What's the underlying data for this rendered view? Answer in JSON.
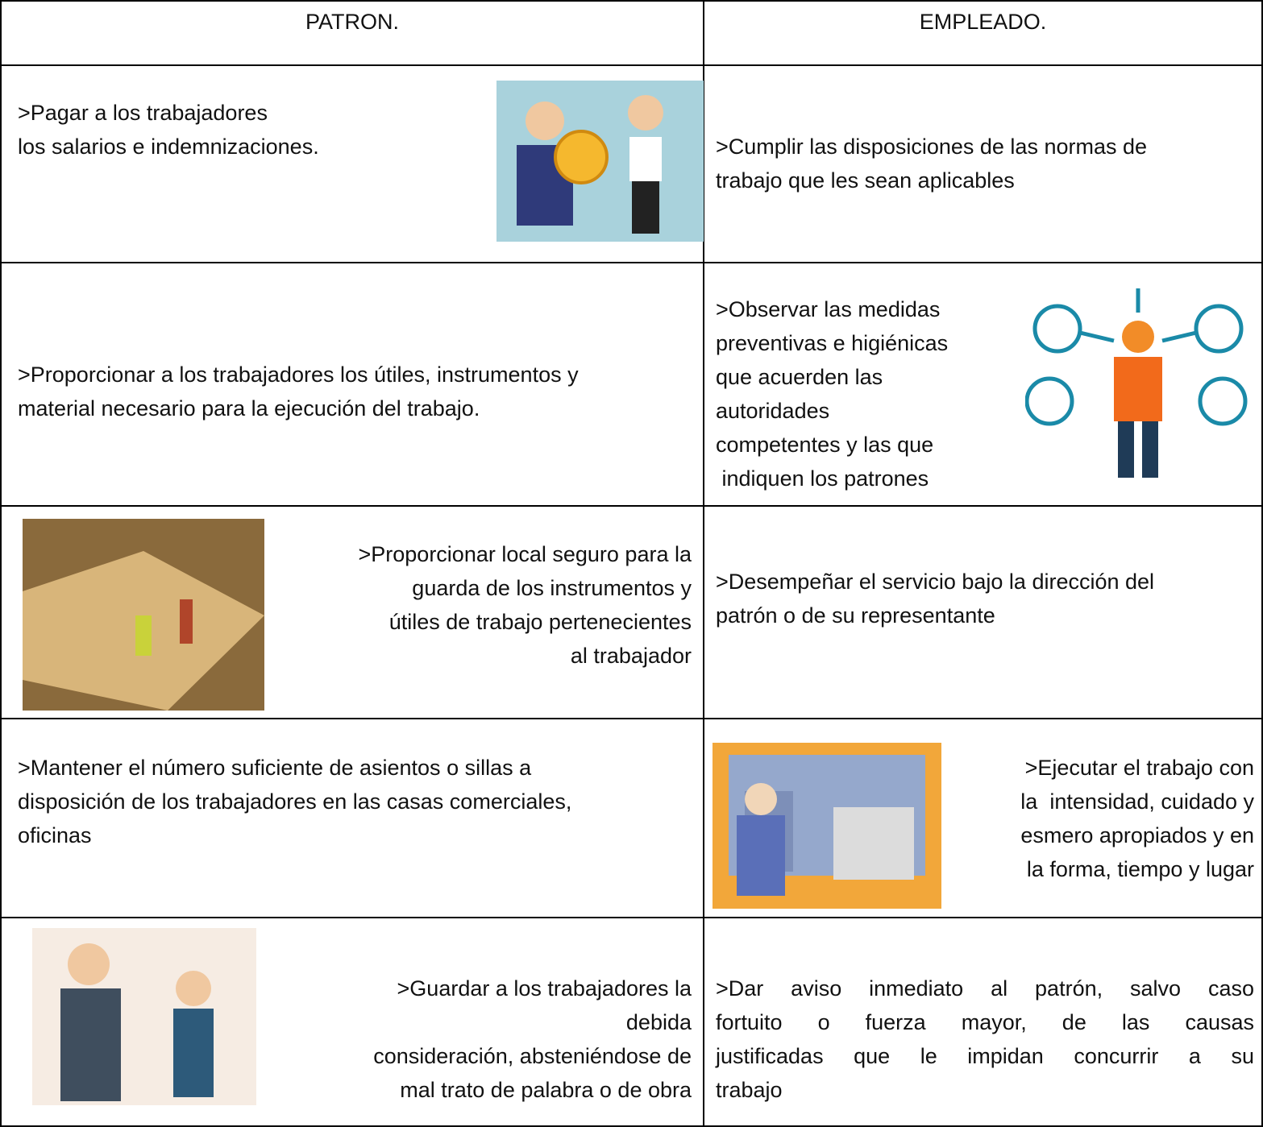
{
  "table": {
    "header": [
      "PATRON.",
      "EMPLEADO."
    ],
    "rows": [
      [
        [
          ">Pagar a los trabajadores",
          "los salarios e indemnizaciones."
        ],
        [
          ">Cumplir las disposiciones de las normas de",
          "trabajo que les sean aplicables"
        ]
      ],
      [
        [
          ">Proporcionar a los trabajadores los útiles, instrumentos y",
          "material necesario para la ejecución del trabajo."
        ],
        [
          ">Observar las medidas",
          "preventivas e higiénicas",
          "que acuerden las",
          "autoridades",
          "competentes y las que",
          " indiquen los patrones"
        ]
      ],
      [
        [
          ">Proporcionar local seguro para la",
          "guarda de los instrumentos y",
          "útiles de trabajo pertenecientes",
          "al trabajador"
        ],
        [
          ">Desempeñar el servicio bajo la dirección del",
          "patrón o de su representante"
        ]
      ],
      [
        [
          ">Mantener el número suficiente de asientos o sillas a",
          "disposición de los trabajadores en las casas comerciales,",
          "oficinas"
        ],
        [
          ">Ejecutar el trabajo con",
          "la  intensidad, cuidado y",
          "esmero apropiados y en",
          "la forma, tiempo y lugar"
        ]
      ],
      [
        [
          ">Guardar a los trabajadores la",
          "debida",
          "consideración, absteniéndose de",
          "mal trato de palabra o de obra"
        ],
        [
          ">Dar aviso inmediato al patrón, salvo caso",
          "fortuito o fuerza mayor, de las causas",
          "justificadas que le impidan concurrir a su",
          "trabajo"
        ]
      ]
    ]
  }
}
